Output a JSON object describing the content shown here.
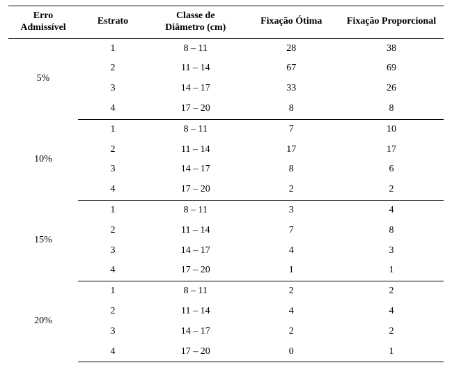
{
  "colors": {
    "text": "#000000",
    "background": "#ffffff",
    "border": "#000000"
  },
  "typography": {
    "font_family": "Times New Roman",
    "header_fontsize_pt": 11,
    "header_fontweight": "bold",
    "body_fontsize_pt": 11,
    "body_fontweight": "normal"
  },
  "table": {
    "type": "table",
    "columns": [
      {
        "key": "erro",
        "label_line1": "Erro",
        "label_line2": "Admissível",
        "width_pct": 16,
        "align": "center"
      },
      {
        "key": "estrato",
        "label_line1": "Estrato",
        "label_line2": "",
        "width_pct": 16,
        "align": "center"
      },
      {
        "key": "classe",
        "label_line1": "Classe de",
        "label_line2": "Diâmetro (cm)",
        "width_pct": 22,
        "align": "center"
      },
      {
        "key": "otima",
        "label_line1": "Fixação Ótima",
        "label_line2": "",
        "width_pct": 22,
        "align": "center"
      },
      {
        "key": "prop",
        "label_line1": "Fixação Proporcional",
        "label_line2": "",
        "width_pct": 24,
        "align": "center"
      }
    ],
    "groups": [
      {
        "label": "5%",
        "rows": [
          {
            "estrato": "1",
            "classe": "8 – 11",
            "otima": "28",
            "prop": "38"
          },
          {
            "estrato": "2",
            "classe": "11 – 14",
            "otima": "67",
            "prop": "69"
          },
          {
            "estrato": "3",
            "classe": "14 – 17",
            "otima": "33",
            "prop": "26"
          },
          {
            "estrato": "4",
            "classe": "17 – 20",
            "otima": "8",
            "prop": "8"
          }
        ]
      },
      {
        "label": "10%",
        "rows": [
          {
            "estrato": "1",
            "classe": "8 – 11",
            "otima": "7",
            "prop": "10"
          },
          {
            "estrato": "2",
            "classe": "11 – 14",
            "otima": "17",
            "prop": "17"
          },
          {
            "estrato": "3",
            "classe": "14 – 17",
            "otima": "8",
            "prop": "6"
          },
          {
            "estrato": "4",
            "classe": "17 – 20",
            "otima": "2",
            "prop": "2"
          }
        ]
      },
      {
        "label": "15%",
        "rows": [
          {
            "estrato": "1",
            "classe": "8 – 11",
            "otima": "3",
            "prop": "4"
          },
          {
            "estrato": "2",
            "classe": "11 – 14",
            "otima": "7",
            "prop": "8"
          },
          {
            "estrato": "3",
            "classe": "14 – 17",
            "otima": "4",
            "prop": "3"
          },
          {
            "estrato": "4",
            "classe": "17 – 20",
            "otima": "1",
            "prop": "1"
          }
        ]
      },
      {
        "label": "20%",
        "rows": [
          {
            "estrato": "1",
            "classe": "8 – 11",
            "otima": "2",
            "prop": "2"
          },
          {
            "estrato": "2",
            "classe": "11 – 14",
            "otima": "4",
            "prop": "4"
          },
          {
            "estrato": "3",
            "classe": "14 – 17",
            "otima": "2",
            "prop": "2"
          },
          {
            "estrato": "4",
            "classe": "17 – 20",
            "otima": "0",
            "prop": "1"
          }
        ]
      }
    ]
  }
}
